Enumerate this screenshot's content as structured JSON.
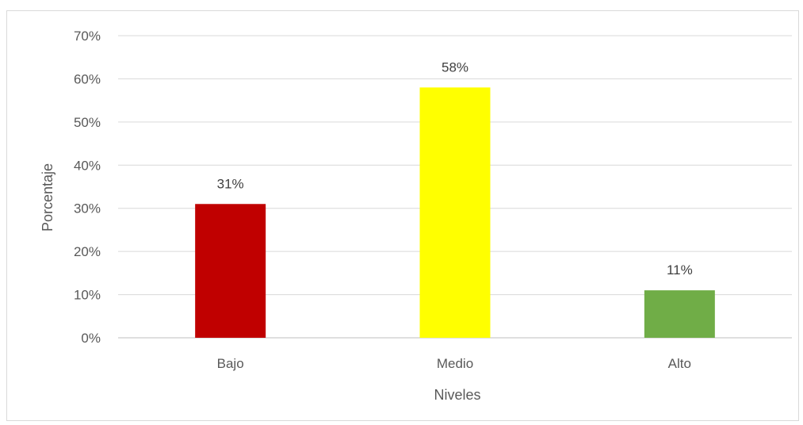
{
  "chart_data": {
    "type": "bar",
    "title": "",
    "xlabel": "Niveles",
    "ylabel": "Porcentaje",
    "categories": [
      "Bajo",
      "Medio",
      "Alto"
    ],
    "values": [
      31,
      58,
      11
    ],
    "value_labels": [
      "31%",
      "58%",
      "11%"
    ],
    "bar_colors": [
      "#c00000",
      "#ffff00",
      "#70ad47"
    ],
    "ylim": [
      0,
      70
    ],
    "y_ticks": [
      0,
      10,
      20,
      30,
      40,
      50,
      60,
      70
    ],
    "y_tick_labels": [
      "0%",
      "10%",
      "20%",
      "30%",
      "40%",
      "50%",
      "60%",
      "70%"
    ],
    "grid": true,
    "legend": "none"
  }
}
